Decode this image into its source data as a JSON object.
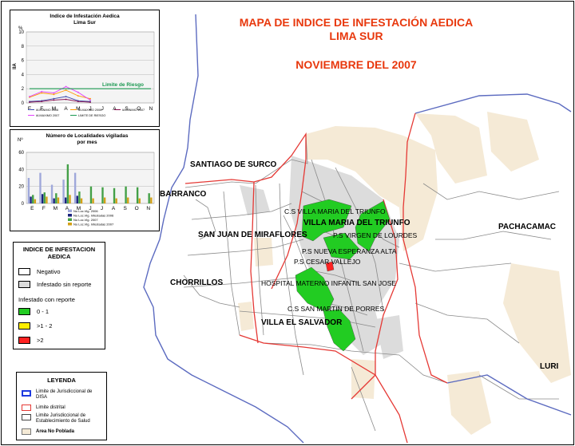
{
  "map": {
    "title_line1": "MAPA DE INDICE DE INFESTACIÓN AEDICA",
    "title_line2": "LIMA SUR",
    "subtitle": "NOVIEMBRE DEL 2007",
    "colors": {
      "title": "#e8380d",
      "district_border": "#e53935",
      "disa_border": "#5c6bc0",
      "establishment_border": "#888888",
      "not_populated": "#f5ead6",
      "sin_reporte": "#dcdcdc",
      "low": "#22cc22",
      "mid": "#ffee00",
      "high": "#ff2222"
    },
    "district_labels": [
      {
        "name": "SANTIAGO DE SURCO"
      },
      {
        "name": "BARRANCO"
      },
      {
        "name": "SAN JUAN DE MIRAFLORES"
      },
      {
        "name": "CHORRILLOS"
      },
      {
        "name": "VILLA MARIA DEL TRIUNFO"
      },
      {
        "name": "VILLA EL SALVADOR"
      },
      {
        "name": "PACHACAMAC"
      },
      {
        "name": "LURI"
      }
    ],
    "establishment_labels": [
      {
        "name": "C.S VILLA MARIA DEL TRIUNFO"
      },
      {
        "name": "P.S VIRGEN DE LOURDES"
      },
      {
        "name": "P.S NUEVA ESPERANZA ALTA"
      },
      {
        "name": "P.S CESAR VALLEJO"
      },
      {
        "name": "HOSPITAL MATERNO INFANTIL SAN JOSE"
      },
      {
        "name": "C.S SAN MARTIN DE PORRES"
      }
    ]
  },
  "chart_data": [
    {
      "type": "line",
      "title": "Indice de Infestación Aedica",
      "subtitle": "Lima Sur",
      "ylabel_unit": "%",
      "ylabel": "IIA",
      "ylim": [
        0,
        10
      ],
      "y_ticks": [
        0,
        2,
        4,
        6,
        8,
        10
      ],
      "categories": [
        "E",
        "F",
        "M",
        "A",
        "M",
        "J",
        "J",
        "A",
        "S",
        "O",
        "N"
      ],
      "risk_label": "Limite de Riesgo",
      "series": [
        {
          "name": "IA MINIMO 2006",
          "color": "#3949ab",
          "values": [
            0.2,
            0.3,
            0.6,
            0.9,
            0.3,
            0.2,
            null,
            null,
            null,
            null,
            null
          ]
        },
        {
          "name": "IA MAXIMO 2006",
          "color": "#ff9800",
          "values": [
            0.8,
            1.4,
            1.2,
            1.8,
            1.0,
            0.6,
            null,
            null,
            null,
            null,
            null
          ]
        },
        {
          "name": "IA MINIMO 2007",
          "color": "#880e4f",
          "values": [
            0.1,
            0.2,
            0.4,
            0.5,
            0.2,
            0.1,
            null,
            null,
            null,
            null,
            null
          ]
        },
        {
          "name": "IA MAXIMO 2007",
          "color": "#e040fb",
          "values": [
            0.9,
            1.6,
            1.4,
            2.3,
            1.5,
            0.4,
            null,
            null,
            null,
            null,
            null
          ]
        },
        {
          "name": "LIMITE DE RIESGO",
          "color": "#1a9850",
          "values": [
            2,
            2,
            2,
            2,
            2,
            2,
            2,
            2,
            2,
            2,
            2
          ]
        }
      ]
    },
    {
      "type": "bar",
      "title": "Número de Localidades vigiladas",
      "subtitle": "por mes",
      "ylabel_unit": "Nº",
      "ylim": [
        0,
        60
      ],
      "y_ticks": [
        0,
        20,
        40,
        60
      ],
      "categories": [
        "E",
        "F",
        "M",
        "A",
        "M",
        "J",
        "J",
        "A",
        "S",
        "O",
        "N"
      ],
      "series": [
        {
          "name": "No Loc.Vig. 2006",
          "color": "#9fa8da",
          "values": [
            30,
            36,
            22,
            28,
            36,
            0,
            0,
            0,
            0,
            0,
            0
          ]
        },
        {
          "name": "No Loc.Vig. Infestadas 2006",
          "color": "#1a237e",
          "values": [
            8,
            11,
            6,
            7,
            9,
            0,
            0,
            0,
            0,
            0,
            0
          ]
        },
        {
          "name": "No Loc.Vig. 2007",
          "color": "#43a047",
          "values": [
            10,
            13,
            12,
            46,
            14,
            20,
            19,
            18,
            20,
            19,
            12
          ]
        },
        {
          "name": "No Loc.Vig. Infestadas 2007",
          "color": "#d4a017",
          "values": [
            5,
            8,
            7,
            10,
            6,
            6,
            7,
            6,
            7,
            6,
            7
          ]
        }
      ]
    }
  ],
  "legend_index": {
    "title_line1": "INDICE DE INFESTACION",
    "title_line2": "AEDICA",
    "negativo": "Negativo",
    "sin_reporte": "Infestado sin reporte",
    "con_reporte": "Infestado con reporte",
    "low": "0 - 1",
    "mid": ">1 - 2",
    "high": ">2"
  },
  "legend_main": {
    "title": "LEYENDA",
    "disa_line1": "Limite de Jurisdiccional de",
    "disa_line2": "DISA",
    "district": "Limite distrital",
    "establishment_line1": "Limite Jurisdiccional de",
    "establishment_line2": "Establecimiento de Salud",
    "not_populated": "Area No Poblada"
  }
}
